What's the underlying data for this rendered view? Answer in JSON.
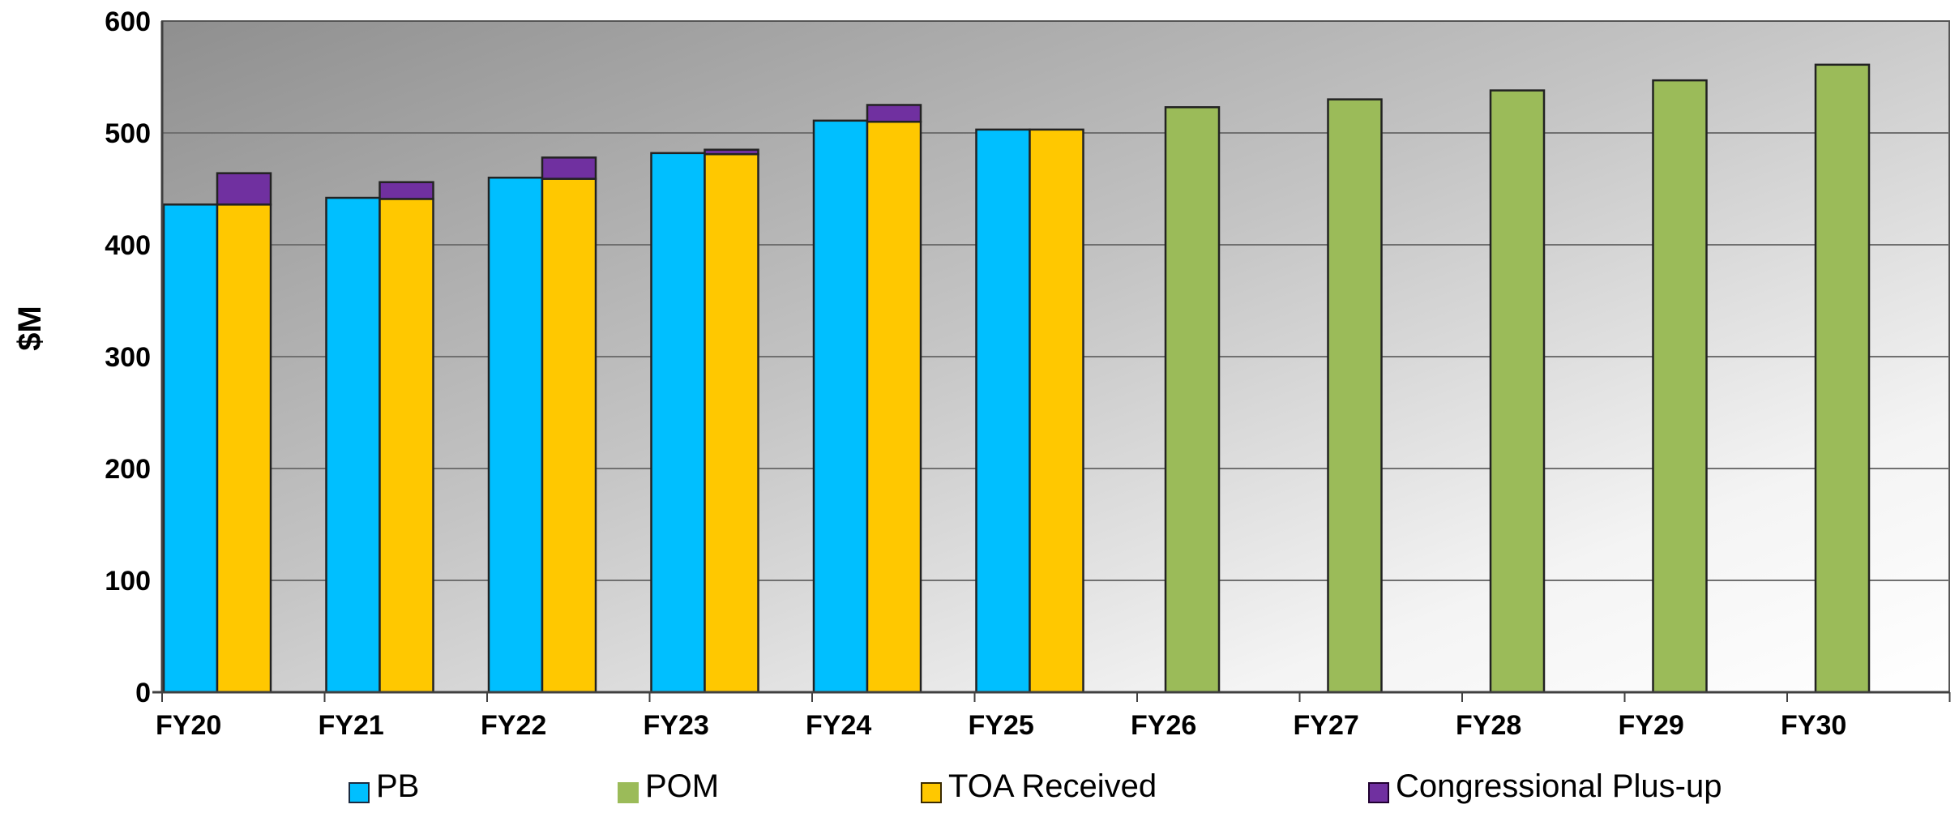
{
  "chart_data": {
    "type": "bar",
    "title": "",
    "xlabel": "",
    "ylabel": "$M",
    "ylim": [
      0,
      600
    ],
    "yticks": [
      0,
      100,
      200,
      300,
      400,
      500,
      600
    ],
    "grid": true,
    "legend_position": "bottom",
    "categories": [
      "FY20",
      "FY21",
      "FY22",
      "FY23",
      "FY24",
      "FY25",
      "FY26",
      "FY27",
      "FY28",
      "FY29",
      "FY30"
    ],
    "series": [
      {
        "name": "PB",
        "color": "#00BFFF",
        "values": [
          436,
          442,
          460,
          482,
          511,
          503,
          null,
          null,
          null,
          null,
          null
        ]
      },
      {
        "name": "POM",
        "color": "#9BBB59",
        "values": [
          null,
          null,
          null,
          null,
          null,
          null,
          523,
          530,
          538,
          547,
          561
        ]
      },
      {
        "name": "TOA Received",
        "color": "#FFC800",
        "values": [
          436,
          441,
          459,
          481,
          510,
          503,
          null,
          null,
          null,
          null,
          null
        ]
      },
      {
        "name": "Congressional Plus-up",
        "color": "#7030A0",
        "values": [
          28,
          15,
          19,
          4,
          15,
          0,
          null,
          null,
          null,
          null,
          null
        ]
      }
    ]
  }
}
